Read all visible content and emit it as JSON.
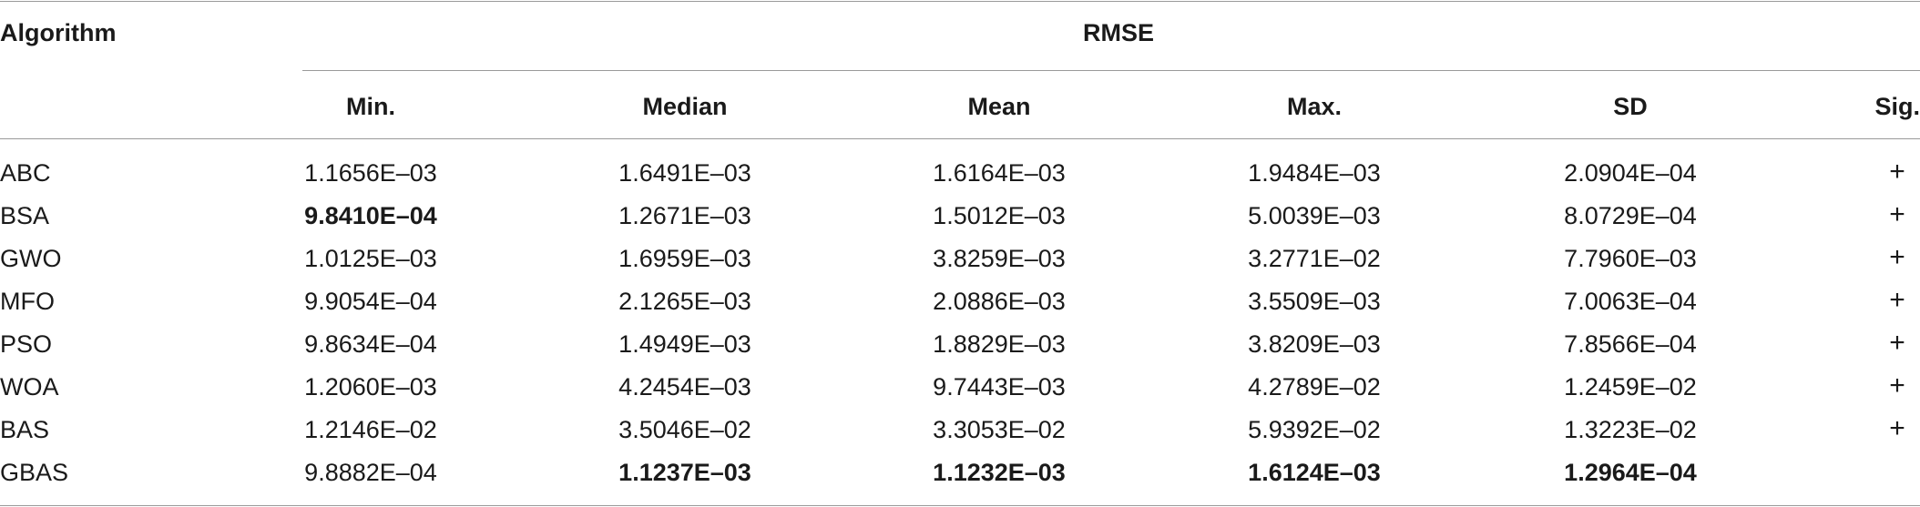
{
  "table": {
    "algorithm_header": "Algorithm",
    "group_header": "RMSE",
    "columns": [
      "Min.",
      "Median",
      "Mean",
      "Max.",
      "SD",
      "Sig."
    ],
    "rows": [
      {
        "algorithm": "ABC",
        "min": "1.1656E–03",
        "median": "1.6491E–03",
        "mean": "1.6164E–03",
        "max": "1.9484E–03",
        "sd": "2.0904E–04",
        "sig": "+",
        "bold": []
      },
      {
        "algorithm": "BSA",
        "min": "9.8410E–04",
        "median": "1.2671E–03",
        "mean": "1.5012E–03",
        "max": "5.0039E–03",
        "sd": "8.0729E–04",
        "sig": "+",
        "bold": [
          "min"
        ]
      },
      {
        "algorithm": "GWO",
        "min": "1.0125E–03",
        "median": "1.6959E–03",
        "mean": "3.8259E–03",
        "max": "3.2771E–02",
        "sd": "7.7960E–03",
        "sig": "+",
        "bold": []
      },
      {
        "algorithm": "MFO",
        "min": "9.9054E–04",
        "median": "2.1265E–03",
        "mean": "2.0886E–03",
        "max": "3.5509E–03",
        "sd": "7.0063E–04",
        "sig": "+",
        "bold": []
      },
      {
        "algorithm": "PSO",
        "min": "9.8634E–04",
        "median": "1.4949E–03",
        "mean": "1.8829E–03",
        "max": "3.8209E–03",
        "sd": "7.8566E–04",
        "sig": "+",
        "bold": []
      },
      {
        "algorithm": "WOA",
        "min": "1.2060E–03",
        "median": "4.2454E–03",
        "mean": "9.7443E–03",
        "max": "4.2789E–02",
        "sd": "1.2459E–02",
        "sig": "+",
        "bold": []
      },
      {
        "algorithm": "BAS",
        "min": "1.2146E–02",
        "median": "3.5046E–02",
        "mean": "3.3053E–02",
        "max": "5.9392E–02",
        "sd": "1.3223E–02",
        "sig": "+",
        "bold": []
      },
      {
        "algorithm": "GBAS",
        "min": "9.8882E–04",
        "median": "1.1237E–03",
        "mean": "1.1232E–03",
        "max": "1.6124E–03",
        "sd": "1.2964E–04",
        "sig": "",
        "bold": [
          "median",
          "mean",
          "max",
          "sd"
        ]
      }
    ]
  }
}
